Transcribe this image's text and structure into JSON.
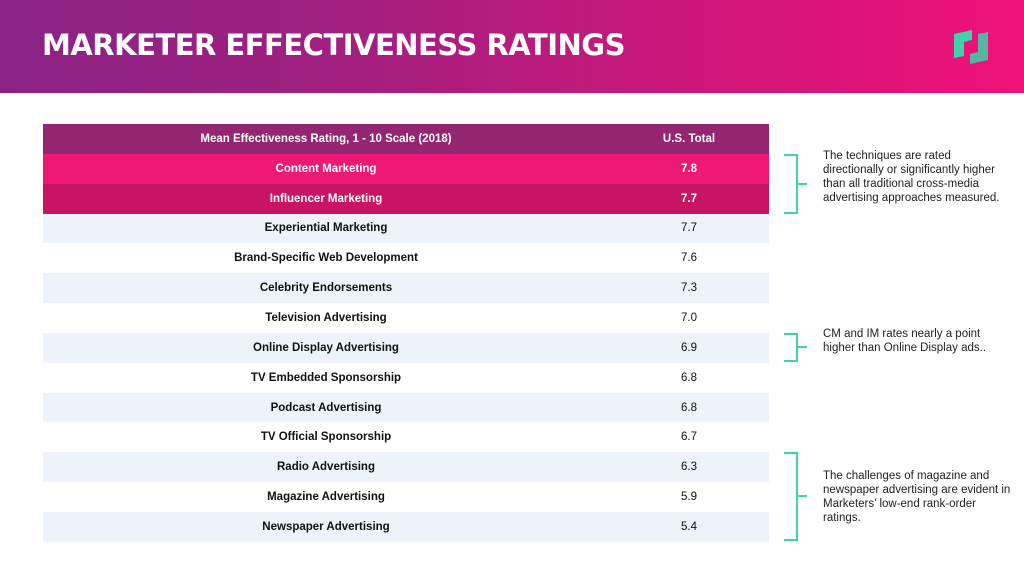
{
  "header": {
    "title": "MARKETER EFFECTIVENESS RATINGS",
    "brand_color_start": "#8a2386",
    "brand_color_end": "#ef1177",
    "logo_icon": "brand-logo-icon"
  },
  "chart_data": {
    "type": "table",
    "columns": [
      "Mean Effectiveness Rating, 1 - 10 Scale (2018)",
      "U.S. Total"
    ],
    "rows": [
      {
        "label": "Content Marketing",
        "value": "7.8",
        "highlight": "primary"
      },
      {
        "label": "Influencer Marketing",
        "value": "7.7",
        "highlight": "secondary"
      },
      {
        "label": "Experiential Marketing",
        "value": "7.7"
      },
      {
        "label": "Brand-Specific Web Development",
        "value": "7.6"
      },
      {
        "label": "Celebrity Endorsements",
        "value": "7.3"
      },
      {
        "label": "Television Advertising",
        "value": "7.0"
      },
      {
        "label": "Online Display Advertising",
        "value": "6.9"
      },
      {
        "label": "TV Embedded Sponsorship",
        "value": "6.8"
      },
      {
        "label": "Podcast Advertising",
        "value": "6.8"
      },
      {
        "label": "TV Official Sponsorship",
        "value": "6.7"
      },
      {
        "label": "Radio Advertising",
        "value": "6.3"
      },
      {
        "label": "Magazine Advertising",
        "value": "5.9"
      },
      {
        "label": "Newspaper Advertising",
        "value": "5.4"
      }
    ],
    "colors": {
      "header": "#94256f",
      "highlight_primary": "#ee1972",
      "highlight_secondary": "#c81462",
      "row_alt": "#eef2fa",
      "bracket": "#3ed4a7"
    }
  },
  "annotations": [
    {
      "text": "The techniques are rated directionally or significantly higher than all traditional cross-media advertising approaches measured.",
      "rows": [
        0,
        1
      ]
    },
    {
      "text": "CM and IM rates nearly a point higher than Online Display ads..",
      "rows": [
        6
      ]
    },
    {
      "text": "The challenges of magazine and newspaper advertising are evident in Marketers’ low-end rank-order ratings.",
      "rows": [
        10,
        11,
        12
      ]
    }
  ]
}
